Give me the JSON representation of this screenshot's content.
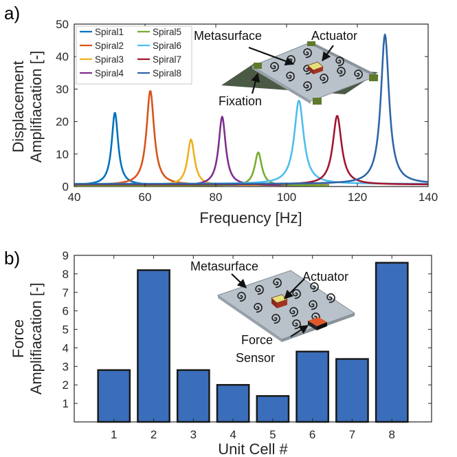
{
  "chart_data": [
    {
      "panel": "a)",
      "type": "line",
      "xlabel": "Frequency [Hz]",
      "ylabel_lines": [
        "Displacement",
        "Amplifiacation [-]"
      ],
      "xlim": [
        40,
        140
      ],
      "ylim": [
        0,
        50
      ],
      "xticks": [
        40,
        60,
        80,
        100,
        120,
        140
      ],
      "yticks": [
        0,
        10,
        20,
        30,
        40,
        50
      ],
      "grid": false,
      "legend_position": "top-left",
      "legend": [
        {
          "name": "Spiral1",
          "color": "#0072BD"
        },
        {
          "name": "Spiral5",
          "color": "#77AC30"
        },
        {
          "name": "Spiral2",
          "color": "#D95319"
        },
        {
          "name": "Spiral6",
          "color": "#4DBEEE"
        },
        {
          "name": "Spiral3",
          "color": "#EDB120"
        },
        {
          "name": "Spiral7",
          "color": "#A2142F"
        },
        {
          "name": "Spiral4",
          "color": "#7E2F8E"
        },
        {
          "name": "Spiral8",
          "color": "#2F65A7"
        }
      ],
      "series": [
        {
          "name": "Spiral1",
          "color": "#0072BD",
          "x_range": [
            40,
            112
          ],
          "peak_x": 51.5,
          "peak_y": 22.8,
          "gamma": 1.1,
          "baseline": 0.45
        },
        {
          "name": "Spiral2",
          "color": "#D95319",
          "x_range": [
            40,
            112
          ],
          "peak_x": 61.5,
          "peak_y": 29.5,
          "gamma": 1.3,
          "baseline": 0.5
        },
        {
          "name": "Spiral3",
          "color": "#EDB120",
          "x_range": [
            40,
            112
          ],
          "peak_x": 73.0,
          "peak_y": 14.5,
          "gamma": 1.2,
          "baseline": 0.4
        },
        {
          "name": "Spiral4",
          "color": "#7E2F8E",
          "x_range": [
            40,
            112
          ],
          "peak_x": 81.8,
          "peak_y": 21.5,
          "gamma": 1.2,
          "baseline": 0.35
        },
        {
          "name": "Spiral5",
          "color": "#77AC30",
          "x_range": [
            40,
            112
          ],
          "peak_x": 92.0,
          "peak_y": 10.5,
          "gamma": 1.2,
          "baseline": 0.3
        },
        {
          "name": "Spiral6",
          "color": "#4DBEEE",
          "x_range": [
            40,
            140
          ],
          "peak_x": 103.5,
          "peak_y": 26.5,
          "gamma": 1.6,
          "baseline": 0.8
        },
        {
          "name": "Spiral7",
          "color": "#A2142F",
          "x_range": [
            40,
            140
          ],
          "peak_x": 114.3,
          "peak_y": 21.8,
          "gamma": 1.5,
          "baseline": 0.6
        },
        {
          "name": "Spiral8",
          "color": "#2F65A7",
          "x_range": [
            40,
            140
          ],
          "peak_x": 127.8,
          "peak_y": 46.8,
          "gamma": 1.4,
          "baseline": 0.8
        }
      ],
      "annotations": {
        "metasurface": "Metasurface",
        "actuator": "Actuator",
        "fixation": "Fixation"
      }
    },
    {
      "panel": "b)",
      "type": "bar",
      "xlabel": "Unit Cell #",
      "ylabel_lines": [
        "Force",
        "Amplifiacation [-]"
      ],
      "categories": [
        "1",
        "2",
        "3",
        "4",
        "5",
        "6",
        "7",
        "8"
      ],
      "values": [
        2.8,
        8.2,
        2.8,
        2.0,
        1.4,
        3.8,
        3.4,
        8.6
      ],
      "ylim": [
        0,
        9
      ],
      "xlim": [
        0,
        9
      ],
      "yticks": [
        1,
        2,
        3,
        4,
        5,
        6,
        7,
        8,
        9
      ],
      "bar_color": "#3A6EBB",
      "grid": false,
      "annotations": {
        "metasurface": "Metasurface",
        "actuator": "Actuator",
        "sensor_lines": [
          "Force",
          "Sensor"
        ]
      }
    }
  ]
}
